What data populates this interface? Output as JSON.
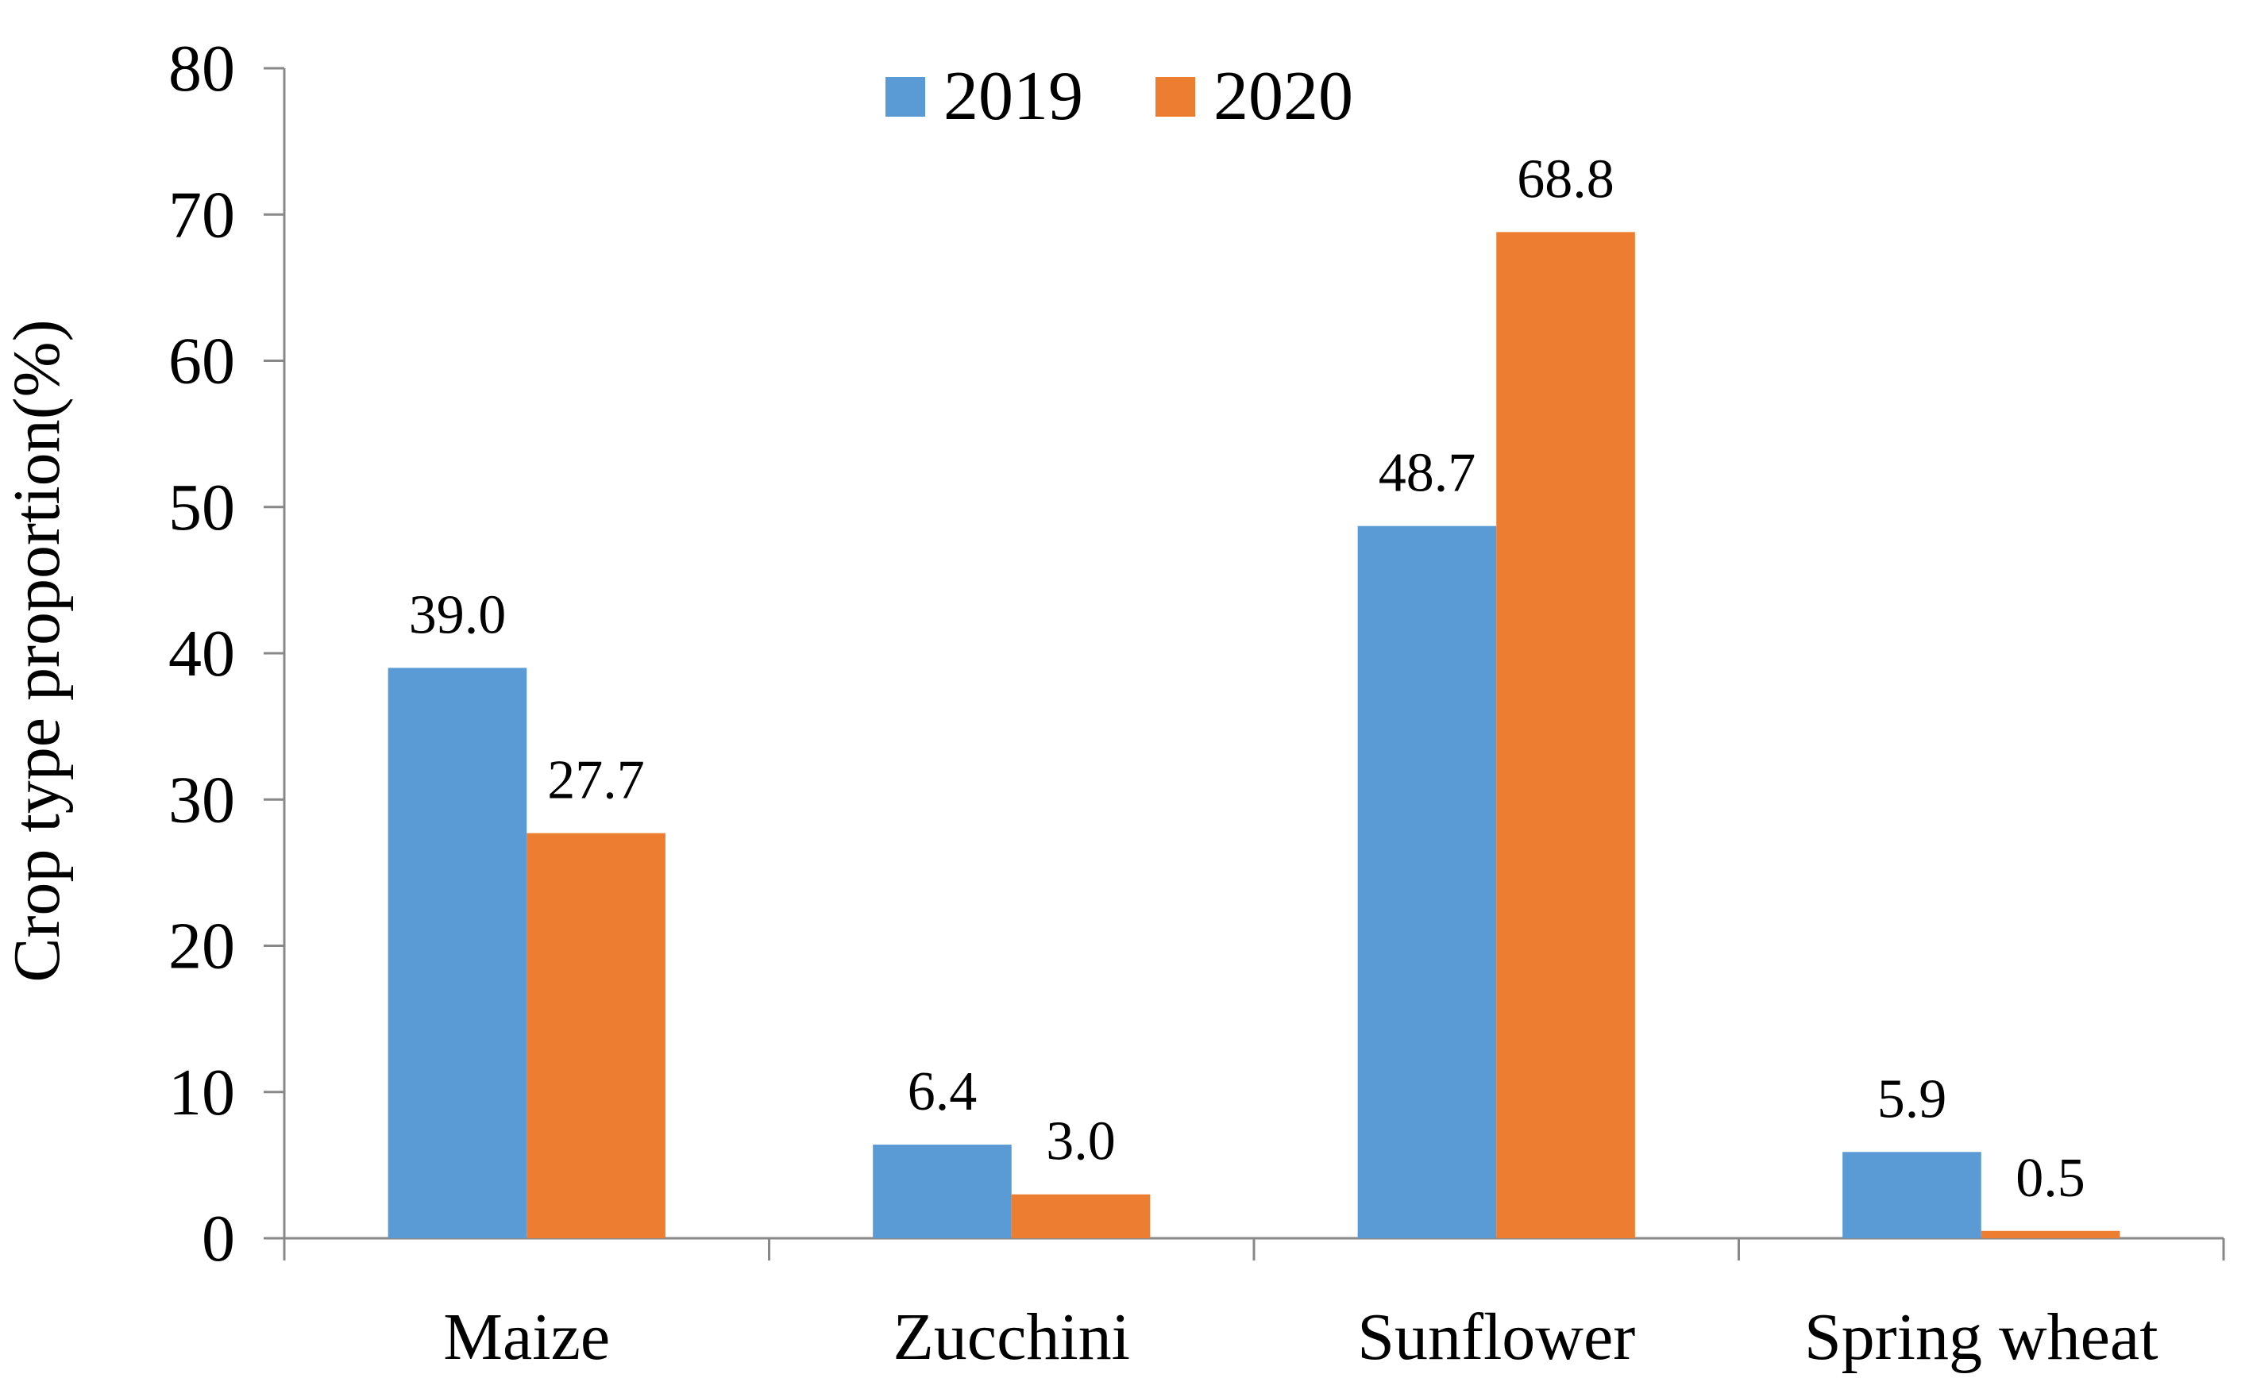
{
  "chart_data": {
    "type": "bar",
    "title": "",
    "xlabel": "",
    "ylabel": "Crop type proportion(%)",
    "ylim": [
      0,
      80
    ],
    "yticks": [
      0,
      10,
      20,
      30,
      40,
      50,
      60,
      70,
      80
    ],
    "grid": false,
    "legend_position": "top-center",
    "categories": [
      "Maize",
      "Zucchini",
      "Sunflower",
      "Spring wheat"
    ],
    "series": [
      {
        "name": "2019",
        "color": "#5B9BD5",
        "values": [
          39.0,
          6.4,
          48.7,
          5.9
        ],
        "labels": [
          "39.0",
          "6.4",
          "48.7",
          "5.9"
        ]
      },
      {
        "name": "2020",
        "color": "#ED7D31",
        "values": [
          27.7,
          3.0,
          68.8,
          0.5
        ],
        "labels": [
          "27.7",
          "3.0",
          "68.8",
          "0.5"
        ]
      }
    ]
  }
}
